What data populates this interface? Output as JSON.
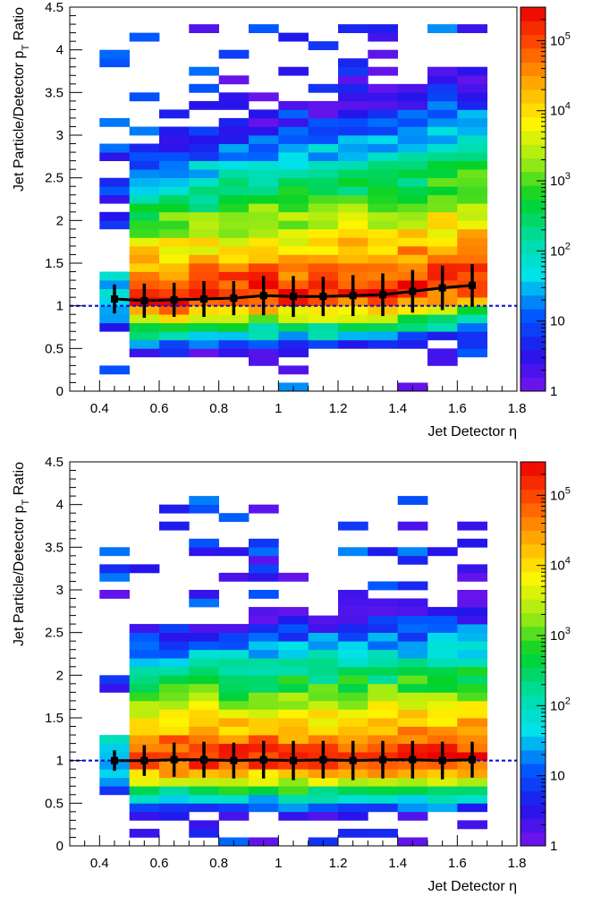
{
  "chart_data": [
    {
      "type": "heatmap",
      "xlabel": "Jet Detector η",
      "ylabel_main": "Jet Particle/Detector p",
      "ylabel_sub": "T",
      "ylabel_tail": " Ratio",
      "xlim": [
        0.3,
        1.8
      ],
      "ylim": [
        0,
        4.5
      ],
      "x_ticks": [
        "0.4",
        "0.6",
        "0.8",
        "1",
        "1.2",
        "1.4",
        "1.6",
        "1.8"
      ],
      "y_ticks": [
        "0",
        "0.5",
        "1",
        "1.5",
        "2",
        "2.5",
        "3",
        "3.5",
        "4",
        "4.5"
      ],
      "colorbar_ticks": [
        "1",
        "10",
        "10^2",
        "10^3",
        "10^4",
        "10^5"
      ],
      "zscale": "log",
      "zlim": [
        1,
        300000
      ],
      "reference_line": 1,
      "profile": {
        "x": [
          0.45,
          0.55,
          0.65,
          0.75,
          0.85,
          0.95,
          1.05,
          1.15,
          1.25,
          1.35,
          1.45,
          1.55,
          1.65
        ],
        "y": [
          1.08,
          1.06,
          1.07,
          1.08,
          1.09,
          1.12,
          1.11,
          1.11,
          1.12,
          1.13,
          1.17,
          1.21,
          1.24
        ],
        "err": [
          0.17,
          0.2,
          0.2,
          0.21,
          0.2,
          0.23,
          0.24,
          0.23,
          0.24,
          0.25,
          0.25,
          0.26,
          0.25
        ]
      }
    },
    {
      "type": "heatmap",
      "xlabel": "Jet Detector η",
      "ylabel_main": "Jet Particle/Detector p",
      "ylabel_sub": "T",
      "ylabel_tail": " Ratio",
      "xlim": [
        0.3,
        1.8
      ],
      "ylim": [
        0,
        4.5
      ],
      "x_ticks": [
        "0.4",
        "0.6",
        "0.8",
        "1",
        "1.2",
        "1.4",
        "1.6",
        "1.8"
      ],
      "y_ticks": [
        "0",
        "0.5",
        "1",
        "1.5",
        "2",
        "2.5",
        "3",
        "3.5",
        "4",
        "4.5"
      ],
      "colorbar_ticks": [
        "1",
        "10",
        "10^2",
        "10^3",
        "10^4",
        "10^5"
      ],
      "zscale": "log",
      "zlim": [
        1,
        300000
      ],
      "reference_line": 1,
      "profile": {
        "x": [
          0.45,
          0.55,
          0.65,
          0.75,
          0.85,
          0.95,
          1.05,
          1.15,
          1.25,
          1.35,
          1.45,
          1.55,
          1.65
        ],
        "y": [
          1.0,
          1.0,
          1.01,
          1.01,
          1.0,
          1.01,
          1.0,
          1.01,
          1.0,
          1.01,
          1.01,
          1.0,
          1.01
        ],
        "err": [
          0.12,
          0.18,
          0.2,
          0.21,
          0.21,
          0.22,
          0.23,
          0.22,
          0.23,
          0.22,
          0.22,
          0.22,
          0.21
        ]
      }
    }
  ]
}
